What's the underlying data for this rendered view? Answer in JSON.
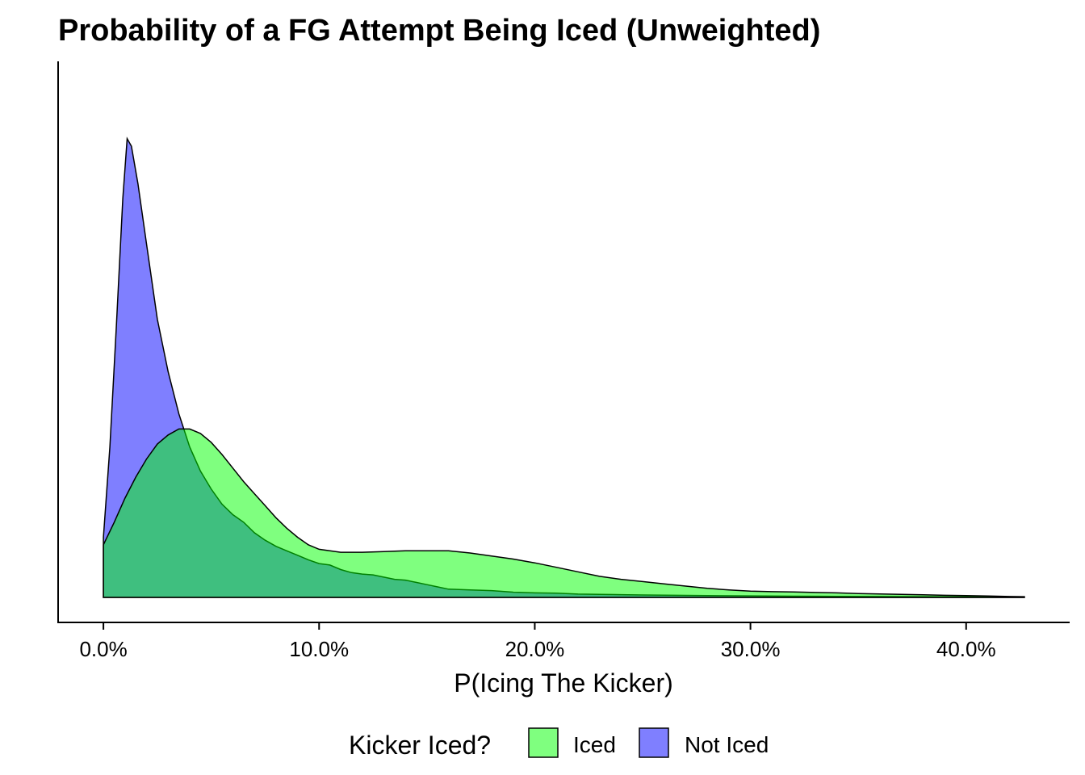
{
  "chart_data": {
    "type": "area",
    "title": "Probability of a FG Attempt Being Iced (Unweighted)",
    "xlabel": "P(Icing The Kicker)",
    "ylabel": "",
    "xlim": [
      -0.021,
      0.448
    ],
    "ylim": [
      0,
      35
    ],
    "xticks": [
      {
        "value": 0.0,
        "label": "0.0%"
      },
      {
        "value": 0.1,
        "label": "10.0%"
      },
      {
        "value": 0.2,
        "label": "20.0%"
      },
      {
        "value": 0.3,
        "label": "30.0%"
      },
      {
        "value": 0.4,
        "label": "40.0%"
      }
    ],
    "legend_placement": "bottom",
    "legend_title": "Kicker Iced?",
    "series": [
      {
        "name": "Iced",
        "color": "#00ff00",
        "points": [
          [
            0.0,
            3.5
          ],
          [
            0.005,
            5.0
          ],
          [
            0.01,
            6.6
          ],
          [
            0.015,
            8.0
          ],
          [
            0.02,
            9.2
          ],
          [
            0.025,
            10.2
          ],
          [
            0.03,
            10.8
          ],
          [
            0.035,
            11.2
          ],
          [
            0.04,
            11.2
          ],
          [
            0.045,
            10.9
          ],
          [
            0.05,
            10.3
          ],
          [
            0.055,
            9.5
          ],
          [
            0.06,
            8.6
          ],
          [
            0.065,
            7.7
          ],
          [
            0.07,
            6.9
          ],
          [
            0.075,
            6.1
          ],
          [
            0.08,
            5.3
          ],
          [
            0.085,
            4.6
          ],
          [
            0.09,
            4.0
          ],
          [
            0.095,
            3.5
          ],
          [
            0.1,
            3.2
          ],
          [
            0.11,
            3.0
          ],
          [
            0.12,
            3.0
          ],
          [
            0.13,
            3.05
          ],
          [
            0.14,
            3.1
          ],
          [
            0.15,
            3.1
          ],
          [
            0.16,
            3.1
          ],
          [
            0.17,
            2.95
          ],
          [
            0.18,
            2.75
          ],
          [
            0.19,
            2.55
          ],
          [
            0.2,
            2.3
          ],
          [
            0.21,
            2.0
          ],
          [
            0.22,
            1.7
          ],
          [
            0.23,
            1.4
          ],
          [
            0.24,
            1.2
          ],
          [
            0.25,
            1.05
          ],
          [
            0.26,
            0.9
          ],
          [
            0.27,
            0.75
          ],
          [
            0.28,
            0.6
          ],
          [
            0.29,
            0.5
          ],
          [
            0.3,
            0.42
          ],
          [
            0.31,
            0.38
          ],
          [
            0.32,
            0.36
          ],
          [
            0.33,
            0.33
          ],
          [
            0.34,
            0.3
          ],
          [
            0.35,
            0.26
          ],
          [
            0.36,
            0.23
          ],
          [
            0.37,
            0.2
          ],
          [
            0.38,
            0.17
          ],
          [
            0.39,
            0.14
          ],
          [
            0.4,
            0.12
          ],
          [
            0.41,
            0.09
          ],
          [
            0.42,
            0.06
          ],
          [
            0.427,
            0.05
          ]
        ]
      },
      {
        "name": "Not Iced",
        "color": "#0000ff",
        "points": [
          [
            0.0,
            4.0
          ],
          [
            0.003,
            10.0
          ],
          [
            0.006,
            18.0
          ],
          [
            0.009,
            26.5
          ],
          [
            0.011,
            30.5
          ],
          [
            0.013,
            30.0
          ],
          [
            0.016,
            27.5
          ],
          [
            0.02,
            23.5
          ],
          [
            0.025,
            18.5
          ],
          [
            0.03,
            15.0
          ],
          [
            0.035,
            12.2
          ],
          [
            0.04,
            10.0
          ],
          [
            0.045,
            8.4
          ],
          [
            0.05,
            7.2
          ],
          [
            0.055,
            6.2
          ],
          [
            0.06,
            5.5
          ],
          [
            0.065,
            5.0
          ],
          [
            0.07,
            4.3
          ],
          [
            0.075,
            3.8
          ],
          [
            0.08,
            3.4
          ],
          [
            0.085,
            3.1
          ],
          [
            0.09,
            2.8
          ],
          [
            0.095,
            2.5
          ],
          [
            0.1,
            2.25
          ],
          [
            0.105,
            2.15
          ],
          [
            0.11,
            1.85
          ],
          [
            0.115,
            1.65
          ],
          [
            0.12,
            1.55
          ],
          [
            0.125,
            1.5
          ],
          [
            0.13,
            1.35
          ],
          [
            0.135,
            1.2
          ],
          [
            0.14,
            1.15
          ],
          [
            0.145,
            1.0
          ],
          [
            0.15,
            0.85
          ],
          [
            0.155,
            0.7
          ],
          [
            0.16,
            0.55
          ],
          [
            0.17,
            0.5
          ],
          [
            0.18,
            0.45
          ],
          [
            0.19,
            0.35
          ],
          [
            0.2,
            0.3
          ],
          [
            0.21,
            0.28
          ],
          [
            0.22,
            0.22
          ],
          [
            0.23,
            0.2
          ],
          [
            0.24,
            0.18
          ],
          [
            0.25,
            0.16
          ],
          [
            0.26,
            0.15
          ],
          [
            0.28,
            0.12
          ],
          [
            0.3,
            0.1
          ],
          [
            0.32,
            0.08
          ],
          [
            0.34,
            0.07
          ],
          [
            0.36,
            0.06
          ],
          [
            0.38,
            0.05
          ],
          [
            0.4,
            0.04
          ],
          [
            0.427,
            0.03
          ]
        ]
      }
    ]
  }
}
